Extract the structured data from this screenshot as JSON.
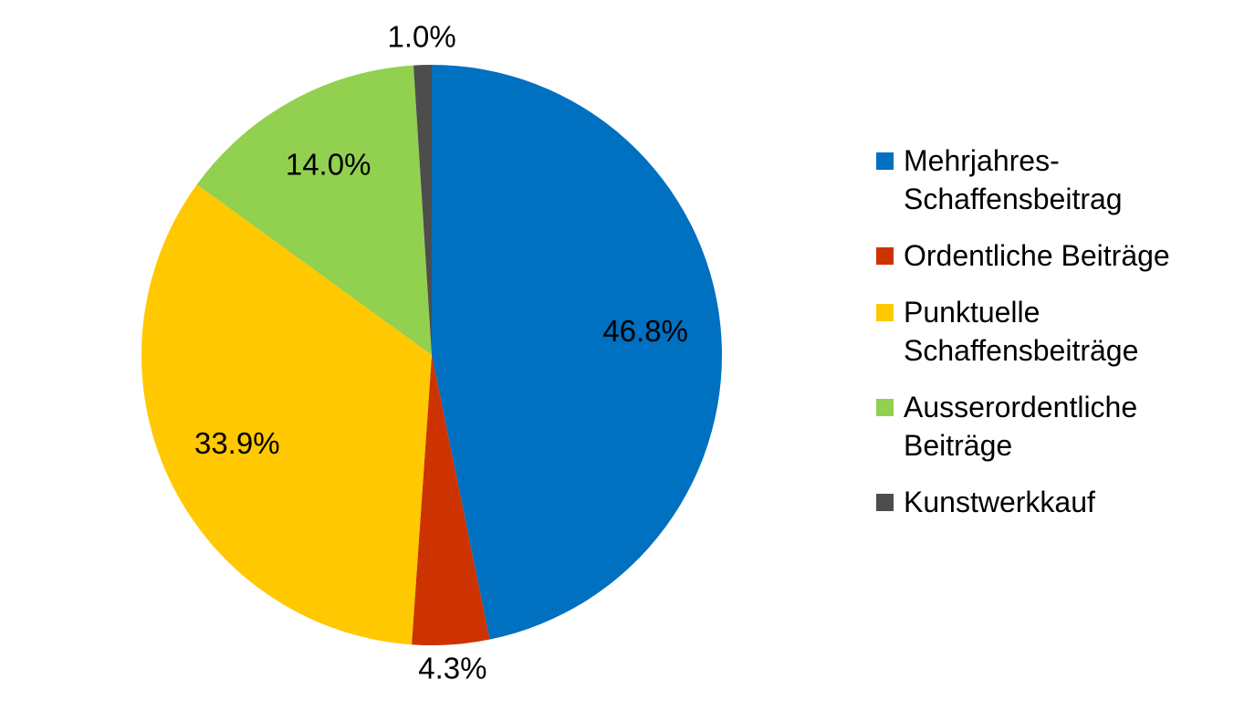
{
  "chart_data": {
    "type": "pie",
    "categories": [
      "Mehrjahres-Schaffensbeitrag",
      "Ordentliche Beiträge",
      "Punktuelle Schaffensbeiträge",
      "Ausserordentliche Beiträge",
      "Kunstwerkkauf"
    ],
    "values": [
      46.8,
      4.3,
      33.9,
      14.0,
      1.0
    ],
    "value_labels": [
      "46.8%",
      "4.3%",
      "33.9%",
      "14.0%",
      "1.0%"
    ],
    "colors": [
      "#0070c0",
      "#cc3300",
      "#ffc800",
      "#92d050",
      "#4d4d4d"
    ],
    "legend": "right"
  }
}
